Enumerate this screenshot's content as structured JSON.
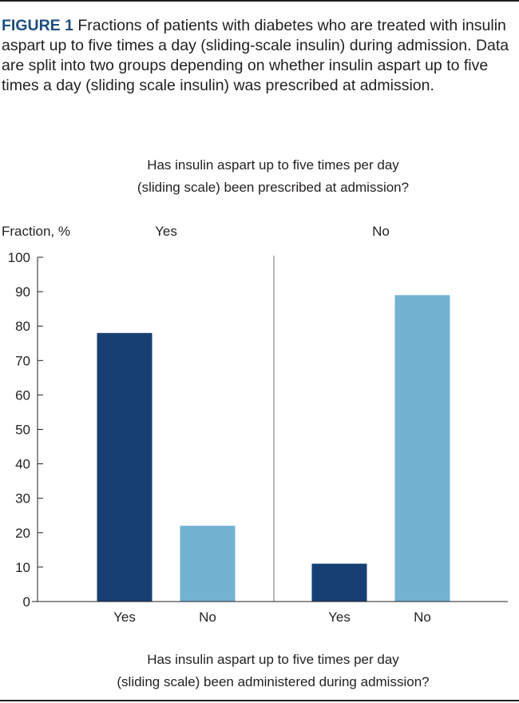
{
  "caption": {
    "label": "FIGURE 1",
    "text": "Fractions of patients with diabetes who are treated with insulin aspart up to five times a day (sliding-scale insulin) during admission. Data are split into two groups depending on whether insulin aspart up to five times a day (sliding scale insulin) was prescribed at admission."
  },
  "chart_data": {
    "type": "bar",
    "title_lines": [
      "Has insulin aspart up to five times per day",
      "(sliding scale) been prescribed at admission?"
    ],
    "ylabel": "Fraction, %",
    "xlabel_lines": [
      "Has insulin aspart up to five times per day",
      "(sliding scale) been administered during admission?"
    ],
    "ylim": [
      0,
      100
    ],
    "yticks": [
      0,
      10,
      20,
      30,
      40,
      50,
      60,
      70,
      80,
      90,
      100
    ],
    "grid": false,
    "colors": {
      "yes": "#173f73",
      "no": "#72b3d2"
    },
    "groups": [
      {
        "name": "Yes",
        "bars": [
          {
            "category": "Yes",
            "value": 78,
            "series": "yes"
          },
          {
            "category": "No",
            "value": 22,
            "series": "no"
          }
        ]
      },
      {
        "name": "No",
        "bars": [
          {
            "category": "Yes",
            "value": 11,
            "series": "yes"
          },
          {
            "category": "No",
            "value": 89,
            "series": "no"
          }
        ]
      }
    ]
  }
}
